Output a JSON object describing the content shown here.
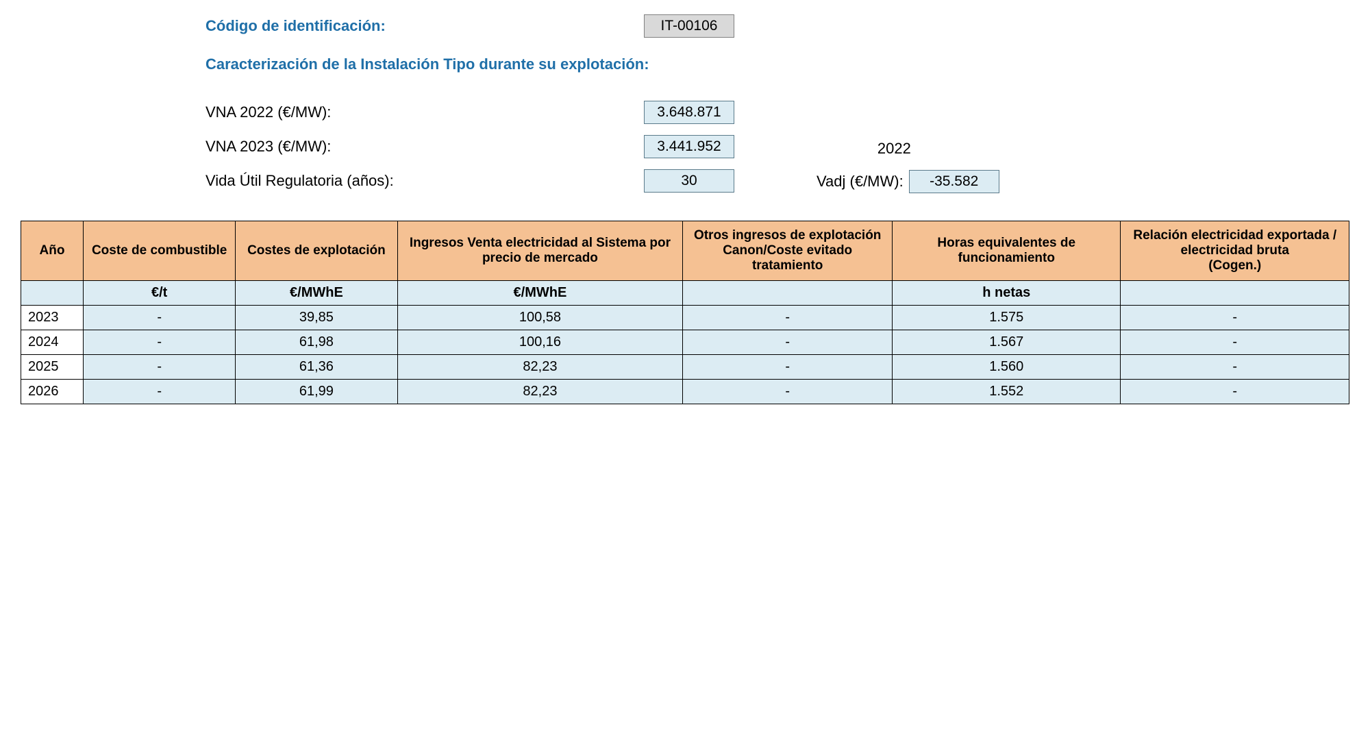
{
  "header": {
    "codigo_label": "Código de identificación:",
    "codigo_value": "IT-00106",
    "caracterizacion_label": "Caracterización de la Instalación Tipo durante su explotación:",
    "vna_2022_label": "VNA 2022 (€/MW):",
    "vna_2022_value": "3.648.871",
    "vna_2023_label": "VNA 2023 (€/MW):",
    "vna_2023_value": "3.441.952",
    "vida_util_label": "Vida Útil Regulatoria (años):",
    "vida_util_value": "30",
    "year_ref": "2022",
    "vadj_label": "Vadj (€/MW):",
    "vadj_value": "-35.582"
  },
  "table": {
    "columns": [
      "Año",
      "Coste de combustible",
      "Costes de explotación",
      "Ingresos Venta electricidad al Sistema por precio de mercado",
      "Otros ingresos de explotación Canon/Coste evitado tratamiento",
      "Horas equivalentes de funcionamiento",
      "Relación electricidad exportada / electricidad bruta\n(Cogen.)"
    ],
    "units": [
      "",
      "€/t",
      "€/MWhE",
      "€/MWhE",
      "",
      "h netas",
      ""
    ],
    "rows": [
      {
        "year": "2023",
        "c1": "-",
        "c2": "39,85",
        "c3": "100,58",
        "c4": "-",
        "c5": "1.575",
        "c6": "-"
      },
      {
        "year": "2024",
        "c1": "-",
        "c2": "61,98",
        "c3": "100,16",
        "c4": "-",
        "c5": "1.567",
        "c6": "-"
      },
      {
        "year": "2025",
        "c1": "-",
        "c2": "61,36",
        "c3": "82,23",
        "c4": "-",
        "c5": "1.560",
        "c6": "-"
      },
      {
        "year": "2026",
        "c1": "-",
        "c2": "61,99",
        "c3": "82,23",
        "c4": "-",
        "c5": "1.552",
        "c6": "-"
      }
    ],
    "col_widths": [
      "60px",
      "160px",
      "170px",
      "300px",
      "220px",
      "240px",
      "240px"
    ],
    "header_bg": "#f5c193",
    "cell_bg": "#dcecf3",
    "border_color": "#000000"
  }
}
